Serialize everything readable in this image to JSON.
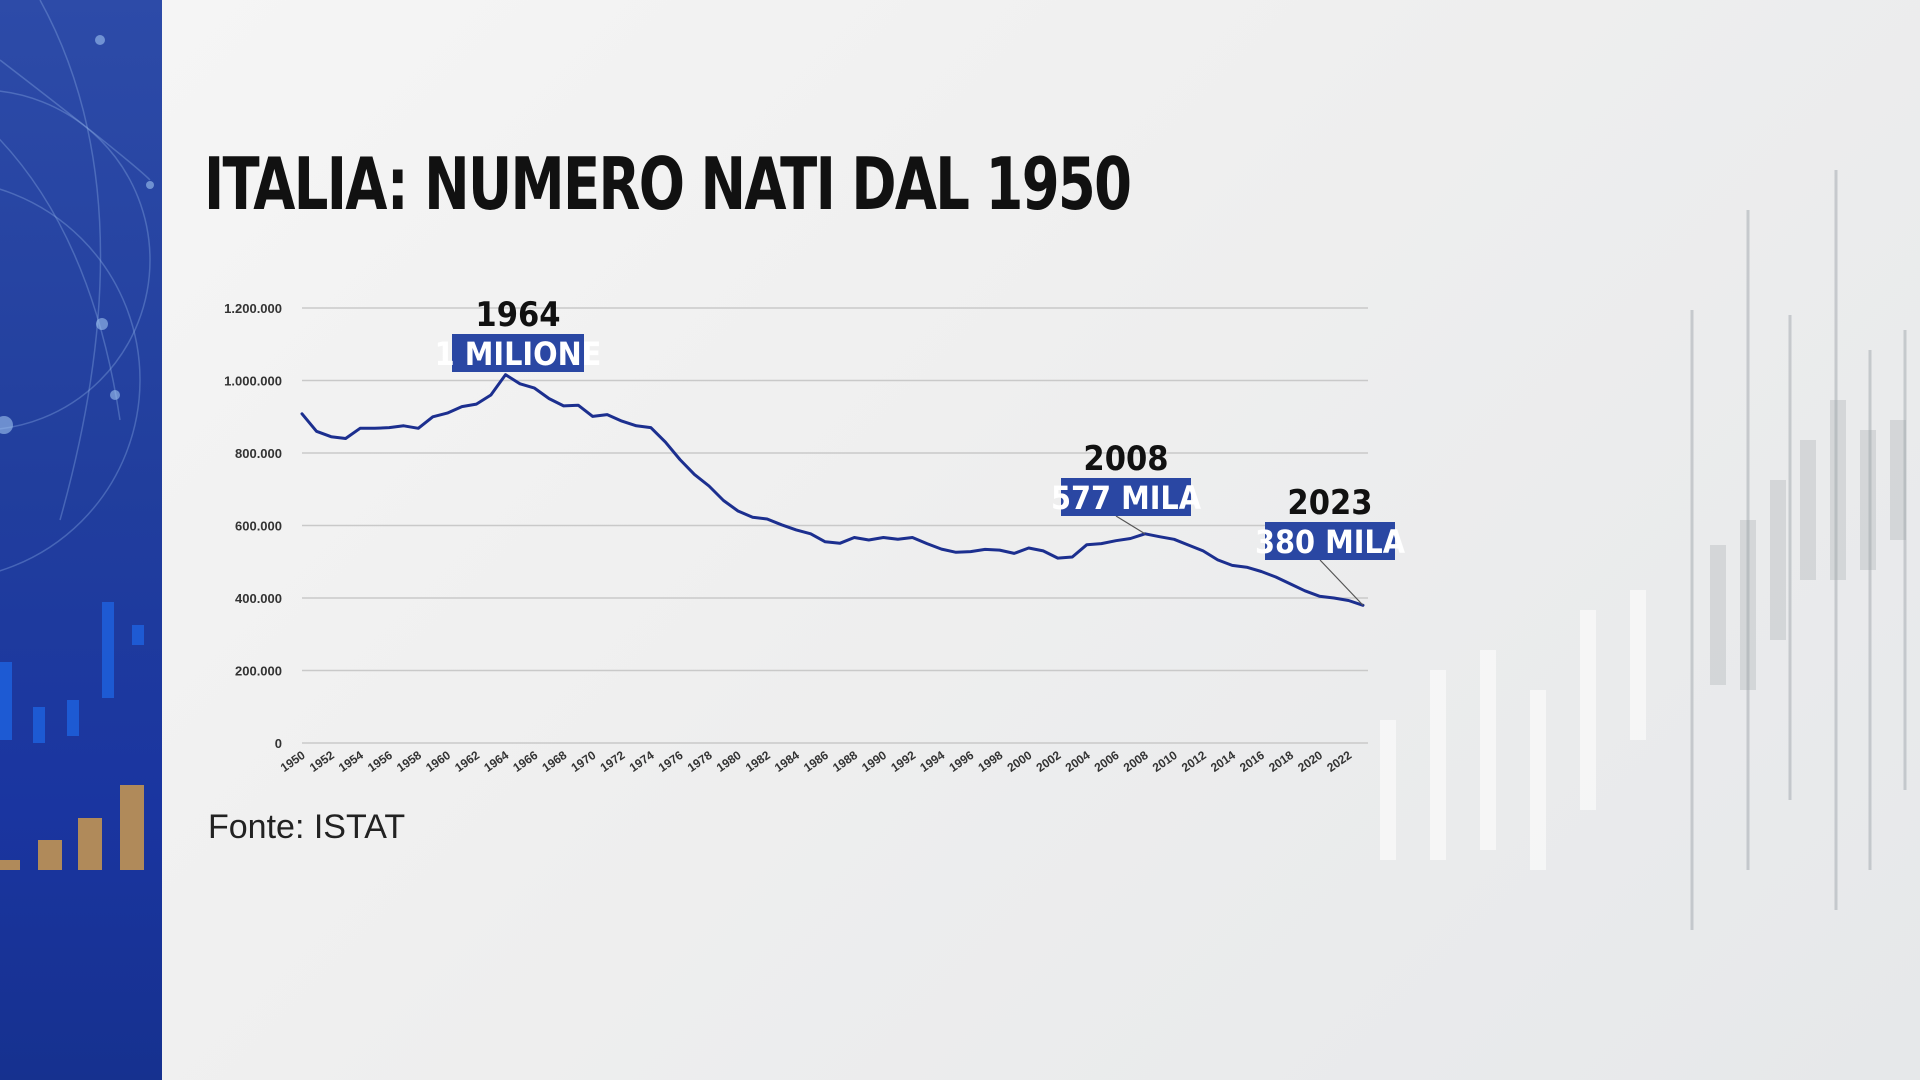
{
  "colors": {
    "sidebar": "#213e9d",
    "line": "#1c2f8f",
    "label_box": "#2a47a3",
    "grid": "#c9c9c9",
    "title": "#111111"
  },
  "title": "ITALIA: NUMERO NATI DAL 1950",
  "source": "Fonte: ISTAT",
  "chart_data": {
    "type": "line",
    "title": "ITALIA: NUMERO NATI DAL 1950",
    "xlabel": "",
    "ylabel": "",
    "ylim": [
      0,
      1200000
    ],
    "grid": true,
    "legend": "none",
    "y_ticks": [
      {
        "value": 0,
        "label": "0"
      },
      {
        "value": 200000,
        "label": "200.000"
      },
      {
        "value": 400000,
        "label": "400.000"
      },
      {
        "value": 600000,
        "label": "600.000"
      },
      {
        "value": 800000,
        "label": "800.000"
      },
      {
        "value": 1000000,
        "label": "1.000.000"
      },
      {
        "value": 1200000,
        "label": "1.200.000"
      }
    ],
    "x_ticks": [
      "1950",
      "1952",
      "1954",
      "1956",
      "1958",
      "1960",
      "1962",
      "1964",
      "1966",
      "1968",
      "1970",
      "1972",
      "1974",
      "1976",
      "1978",
      "1980",
      "1982",
      "1984",
      "1986",
      "1988",
      "1990",
      "1992",
      "1994",
      "1996",
      "1998",
      "2000",
      "2002",
      "2004",
      "2006",
      "2008",
      "2010",
      "2012",
      "2014",
      "2016",
      "2018",
      "2020",
      "2022"
    ],
    "series": [
      {
        "x": [
          1950,
          1951,
          1952,
          1953,
          1954,
          1955,
          1956,
          1957,
          1958,
          1959,
          1960,
          1961,
          1962,
          1963,
          1964,
          1965,
          1966,
          1967,
          1968,
          1969,
          1970,
          1971,
          1972,
          1973,
          1974,
          1975,
          1976,
          1977,
          1978,
          1979,
          1980,
          1981,
          1982,
          1983,
          1984,
          1985,
          1986,
          1987,
          1988,
          1989,
          1990,
          1991,
          1992,
          1993,
          1994,
          1995,
          1996,
          1997,
          1998,
          1999,
          2000,
          2001,
          2002,
          2003,
          2004,
          2005,
          2006,
          2007,
          2008,
          2009,
          2010,
          2011,
          2012,
          2013,
          2014,
          2015,
          2016,
          2017,
          2018,
          2019,
          2020,
          2021,
          2022,
          2023
        ],
        "values": [
          908000,
          860000,
          845000,
          840000,
          868000,
          868000,
          870000,
          875000,
          868000,
          900000,
          910000,
          928000,
          935000,
          960000,
          1016000,
          991000,
          979000,
          950000,
          930000,
          932000,
          901000,
          906000,
          888000,
          875000,
          870000,
          830000,
          782000,
          741000,
          709000,
          669000,
          640000,
          623000,
          618000,
          602000,
          588000,
          577000,
          555000,
          551000,
          567000,
          560000,
          567000,
          562000,
          567000,
          550000,
          535000,
          526000,
          528000,
          534000,
          532000,
          523000,
          538000,
          530000,
          510000,
          513000,
          547000,
          550000,
          558000,
          564000,
          577000,
          569000,
          562000,
          546000,
          530000,
          505000,
          490000,
          485000,
          473000,
          458000,
          439000,
          420000,
          405000,
          400000,
          393000,
          380000
        ]
      }
    ],
    "annotations": [
      {
        "year": "1964",
        "value_label": "1 MILIONE",
        "x": 1964,
        "y": 1016000
      },
      {
        "year": "2008",
        "value_label": "577 MILA",
        "x": 2008,
        "y": 577000
      },
      {
        "year": "2023",
        "value_label": "380 MILA",
        "x": 2023,
        "y": 380000
      }
    ]
  }
}
